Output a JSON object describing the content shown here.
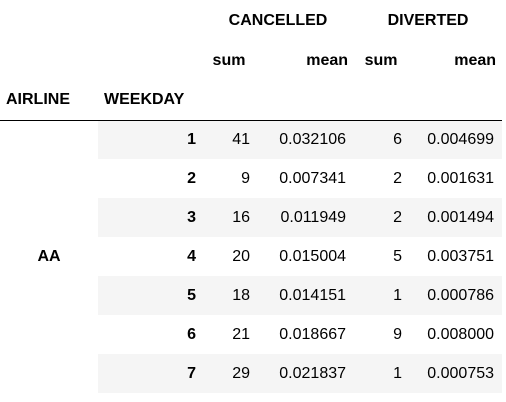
{
  "table": {
    "column_groups": [
      {
        "label": "CANCELLED"
      },
      {
        "label": "DIVERTED"
      }
    ],
    "subcolumns": {
      "cancelled_sum": "sum",
      "cancelled_mean": "mean",
      "diverted_sum": "sum",
      "diverted_mean": "mean"
    },
    "index_names": {
      "airline": "AIRLINE",
      "weekday": "WEEKDAY"
    },
    "airline_value": "AA",
    "rows": [
      {
        "weekday": "1",
        "cancelled_sum": "41",
        "cancelled_mean": "0.032106",
        "diverted_sum": "6",
        "diverted_mean": "0.004699"
      },
      {
        "weekday": "2",
        "cancelled_sum": "9",
        "cancelled_mean": "0.007341",
        "diverted_sum": "2",
        "diverted_mean": "0.001631"
      },
      {
        "weekday": "3",
        "cancelled_sum": "16",
        "cancelled_mean": "0.011949",
        "diverted_sum": "2",
        "diverted_mean": "0.001494"
      },
      {
        "weekday": "4",
        "cancelled_sum": "20",
        "cancelled_mean": "0.015004",
        "diverted_sum": "5",
        "diverted_mean": "0.003751"
      },
      {
        "weekday": "5",
        "cancelled_sum": "18",
        "cancelled_mean": "0.014151",
        "diverted_sum": "1",
        "diverted_mean": "0.000786"
      },
      {
        "weekday": "6",
        "cancelled_sum": "21",
        "cancelled_mean": "0.018667",
        "diverted_sum": "9",
        "diverted_mean": "0.008000"
      },
      {
        "weekday": "7",
        "cancelled_sum": "29",
        "cancelled_mean": "0.021837",
        "diverted_sum": "1",
        "diverted_mean": "0.000753"
      }
    ]
  }
}
